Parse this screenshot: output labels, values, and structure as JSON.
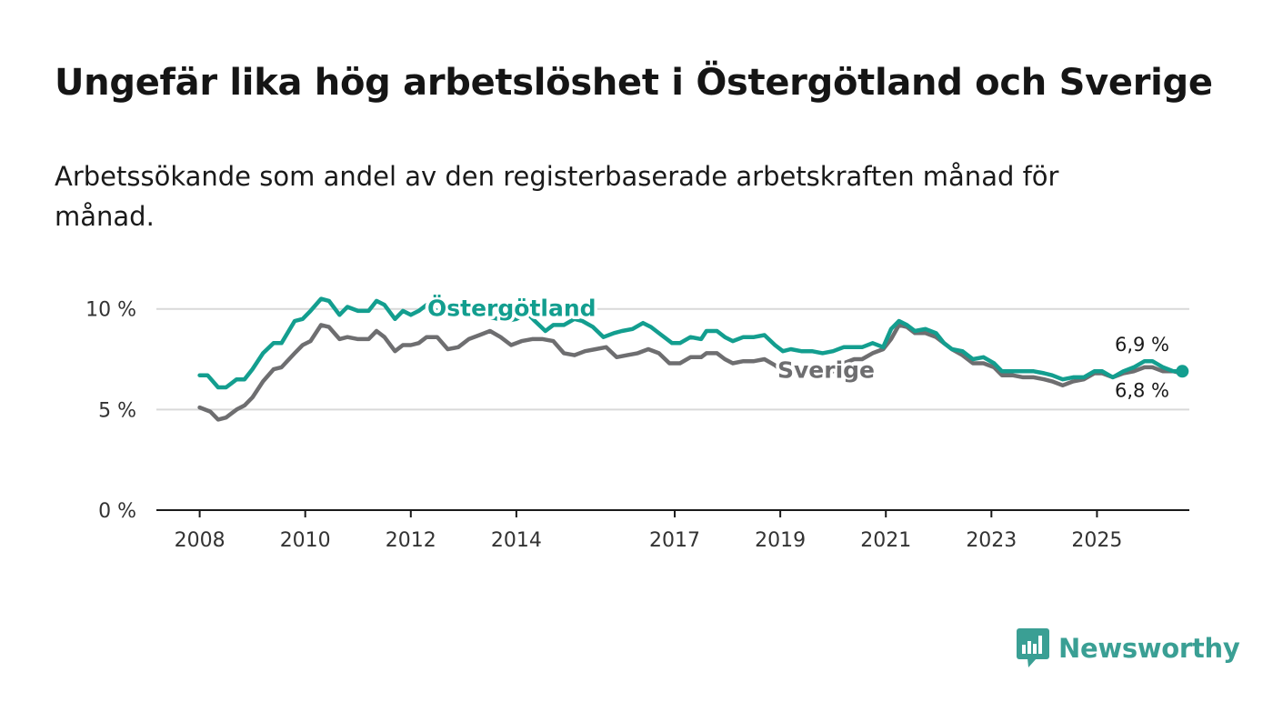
{
  "header": {
    "title": "Ungefär lika hög arbetslöshet i Östergötland och Sverige",
    "subtitle": "Arbetssökande som andel av den registerbaserade arbetskraften månad för månad."
  },
  "logo": {
    "text": "Newsworthy",
    "icon": "bar-chart-speech-bubble-icon",
    "color": "#3a9f94"
  },
  "chart_data": {
    "type": "line",
    "title": "Ungefär lika hög arbetslöshet i Östergötland och Sverige",
    "subtitle": "Arbetssökande som andel av den registerbaserade arbetskraften månad för månad.",
    "xlabel": "",
    "ylabel": "",
    "x_ticks": [
      2008,
      2010,
      2012,
      2014,
      2017,
      2019,
      2021,
      2023,
      2025
    ],
    "y_ticks": [
      {
        "value": 0,
        "label": "0 %"
      },
      {
        "value": 5,
        "label": "5 %"
      },
      {
        "value": 10,
        "label": "10 %"
      }
    ],
    "xlim": [
      2007.18,
      2026.75
    ],
    "ylim": [
      0,
      10.8
    ],
    "grid": true,
    "series": [
      {
        "name": "Östergötland",
        "label": "Östergötland",
        "color": "#139e8f",
        "end_label": "6,9 %",
        "points": [
          [
            2008.0,
            6.7
          ],
          [
            2008.15,
            6.7
          ],
          [
            2008.35,
            6.1
          ],
          [
            2008.5,
            6.1
          ],
          [
            2008.7,
            6.5
          ],
          [
            2008.85,
            6.5
          ],
          [
            2009.0,
            7.0
          ],
          [
            2009.2,
            7.8
          ],
          [
            2009.4,
            8.3
          ],
          [
            2009.55,
            8.3
          ],
          [
            2009.8,
            9.4
          ],
          [
            2009.95,
            9.5
          ],
          [
            2010.1,
            9.9
          ],
          [
            2010.3,
            10.5
          ],
          [
            2010.45,
            10.4
          ],
          [
            2010.65,
            9.7
          ],
          [
            2010.8,
            10.1
          ],
          [
            2011.0,
            9.9
          ],
          [
            2011.2,
            9.9
          ],
          [
            2011.35,
            10.4
          ],
          [
            2011.5,
            10.2
          ],
          [
            2011.7,
            9.5
          ],
          [
            2011.85,
            9.9
          ],
          [
            2012.0,
            9.7
          ],
          [
            2012.15,
            9.9
          ],
          [
            2012.3,
            10.2
          ],
          [
            2012.5,
            9.9
          ],
          [
            2012.7,
            9.7
          ],
          [
            2012.9,
            9.7
          ],
          [
            2013.1,
            10.0
          ],
          [
            2013.3,
            9.7
          ],
          [
            2013.5,
            9.6
          ],
          [
            2013.8,
            9.4
          ],
          [
            2014.0,
            9.5
          ],
          [
            2014.2,
            9.8
          ],
          [
            2014.35,
            9.4
          ],
          [
            2014.55,
            8.9
          ],
          [
            2014.7,
            9.2
          ],
          [
            2014.9,
            9.2
          ],
          [
            2015.1,
            9.5
          ],
          [
            2015.25,
            9.4
          ],
          [
            2015.45,
            9.1
          ],
          [
            2015.65,
            8.6
          ],
          [
            2015.85,
            8.8
          ],
          [
            2016.0,
            8.9
          ],
          [
            2016.2,
            9.0
          ],
          [
            2016.4,
            9.3
          ],
          [
            2016.55,
            9.1
          ],
          [
            2016.75,
            8.7
          ],
          [
            2016.95,
            8.3
          ],
          [
            2017.1,
            8.3
          ],
          [
            2017.3,
            8.6
          ],
          [
            2017.5,
            8.5
          ],
          [
            2017.6,
            8.9
          ],
          [
            2017.8,
            8.9
          ],
          [
            2017.95,
            8.6
          ],
          [
            2018.1,
            8.4
          ],
          [
            2018.3,
            8.6
          ],
          [
            2018.5,
            8.6
          ],
          [
            2018.7,
            8.7
          ],
          [
            2018.9,
            8.2
          ],
          [
            2019.05,
            7.9
          ],
          [
            2019.2,
            8.0
          ],
          [
            2019.4,
            7.9
          ],
          [
            2019.6,
            7.9
          ],
          [
            2019.8,
            7.8
          ],
          [
            2020.0,
            7.9
          ],
          [
            2020.2,
            8.1
          ],
          [
            2020.4,
            8.1
          ],
          [
            2020.55,
            8.1
          ],
          [
            2020.75,
            8.3
          ],
          [
            2020.95,
            8.1
          ],
          [
            2021.1,
            9.0
          ],
          [
            2021.25,
            9.4
          ],
          [
            2021.4,
            9.2
          ],
          [
            2021.55,
            8.9
          ],
          [
            2021.75,
            9.0
          ],
          [
            2021.95,
            8.8
          ],
          [
            2022.1,
            8.3
          ],
          [
            2022.25,
            8.0
          ],
          [
            2022.45,
            7.9
          ],
          [
            2022.65,
            7.5
          ],
          [
            2022.85,
            7.6
          ],
          [
            2023.05,
            7.3
          ],
          [
            2023.2,
            6.9
          ],
          [
            2023.4,
            6.9
          ],
          [
            2023.6,
            6.9
          ],
          [
            2023.8,
            6.9
          ],
          [
            2024.0,
            6.8
          ],
          [
            2024.15,
            6.7
          ],
          [
            2024.35,
            6.5
          ],
          [
            2024.55,
            6.6
          ],
          [
            2024.75,
            6.6
          ],
          [
            2024.95,
            6.9
          ],
          [
            2025.1,
            6.9
          ],
          [
            2025.3,
            6.6
          ],
          [
            2025.5,
            6.9
          ],
          [
            2025.7,
            7.1
          ],
          [
            2025.9,
            7.4
          ],
          [
            2026.05,
            7.4
          ],
          [
            2026.25,
            7.1
          ],
          [
            2026.45,
            6.9
          ],
          [
            2026.6,
            6.9
          ]
        ]
      },
      {
        "name": "Sverige",
        "label": "Sverige",
        "color": "#6e6e70",
        "end_label": "6,8 %",
        "points": [
          [
            2008.0,
            5.1
          ],
          [
            2008.2,
            4.9
          ],
          [
            2008.35,
            4.5
          ],
          [
            2008.5,
            4.6
          ],
          [
            2008.7,
            5.0
          ],
          [
            2008.85,
            5.2
          ],
          [
            2009.0,
            5.6
          ],
          [
            2009.2,
            6.4
          ],
          [
            2009.4,
            7.0
          ],
          [
            2009.55,
            7.1
          ],
          [
            2009.8,
            7.8
          ],
          [
            2009.95,
            8.2
          ],
          [
            2010.1,
            8.4
          ],
          [
            2010.3,
            9.2
          ],
          [
            2010.45,
            9.1
          ],
          [
            2010.65,
            8.5
          ],
          [
            2010.8,
            8.6
          ],
          [
            2011.0,
            8.5
          ],
          [
            2011.2,
            8.5
          ],
          [
            2011.35,
            8.9
          ],
          [
            2011.5,
            8.6
          ],
          [
            2011.7,
            7.9
          ],
          [
            2011.85,
            8.2
          ],
          [
            2012.0,
            8.2
          ],
          [
            2012.15,
            8.3
          ],
          [
            2012.3,
            8.6
          ],
          [
            2012.5,
            8.6
          ],
          [
            2012.7,
            8.0
          ],
          [
            2012.9,
            8.1
          ],
          [
            2013.1,
            8.5
          ],
          [
            2013.3,
            8.7
          ],
          [
            2013.5,
            8.9
          ],
          [
            2013.7,
            8.6
          ],
          [
            2013.9,
            8.2
          ],
          [
            2014.1,
            8.4
          ],
          [
            2014.3,
            8.5
          ],
          [
            2014.5,
            8.5
          ],
          [
            2014.7,
            8.4
          ],
          [
            2014.9,
            7.8
          ],
          [
            2015.1,
            7.7
          ],
          [
            2015.3,
            7.9
          ],
          [
            2015.5,
            8.0
          ],
          [
            2015.7,
            8.1
          ],
          [
            2015.9,
            7.6
          ],
          [
            2016.1,
            7.7
          ],
          [
            2016.3,
            7.8
          ],
          [
            2016.5,
            8.0
          ],
          [
            2016.7,
            7.8
          ],
          [
            2016.9,
            7.3
          ],
          [
            2017.1,
            7.3
          ],
          [
            2017.3,
            7.6
          ],
          [
            2017.5,
            7.6
          ],
          [
            2017.6,
            7.8
          ],
          [
            2017.8,
            7.8
          ],
          [
            2017.95,
            7.5
          ],
          [
            2018.1,
            7.3
          ],
          [
            2018.3,
            7.4
          ],
          [
            2018.5,
            7.4
          ],
          [
            2018.7,
            7.5
          ],
          [
            2018.9,
            7.2
          ],
          [
            2019.05,
            6.9
          ],
          [
            2019.2,
            6.9
          ],
          [
            2019.4,
            6.9
          ],
          [
            2019.6,
            6.9
          ],
          [
            2019.8,
            6.6
          ],
          [
            2020.0,
            6.9
          ],
          [
            2020.2,
            7.3
          ],
          [
            2020.4,
            7.5
          ],
          [
            2020.55,
            7.5
          ],
          [
            2020.75,
            7.8
          ],
          [
            2020.95,
            8.0
          ],
          [
            2021.1,
            8.5
          ],
          [
            2021.25,
            9.2
          ],
          [
            2021.4,
            9.1
          ],
          [
            2021.55,
            8.8
          ],
          [
            2021.75,
            8.8
          ],
          [
            2021.95,
            8.6
          ],
          [
            2022.1,
            8.3
          ],
          [
            2022.25,
            8.0
          ],
          [
            2022.45,
            7.7
          ],
          [
            2022.65,
            7.3
          ],
          [
            2022.85,
            7.3
          ],
          [
            2023.05,
            7.1
          ],
          [
            2023.2,
            6.7
          ],
          [
            2023.4,
            6.7
          ],
          [
            2023.6,
            6.6
          ],
          [
            2023.8,
            6.6
          ],
          [
            2024.0,
            6.5
          ],
          [
            2024.15,
            6.4
          ],
          [
            2024.35,
            6.2
          ],
          [
            2024.55,
            6.4
          ],
          [
            2024.75,
            6.5
          ],
          [
            2024.95,
            6.8
          ],
          [
            2025.1,
            6.8
          ],
          [
            2025.3,
            6.6
          ],
          [
            2025.5,
            6.8
          ],
          [
            2025.7,
            6.9
          ],
          [
            2025.9,
            7.1
          ],
          [
            2026.05,
            7.1
          ],
          [
            2026.25,
            6.9
          ],
          [
            2026.45,
            6.9
          ],
          [
            2026.6,
            6.8
          ]
        ]
      }
    ]
  }
}
